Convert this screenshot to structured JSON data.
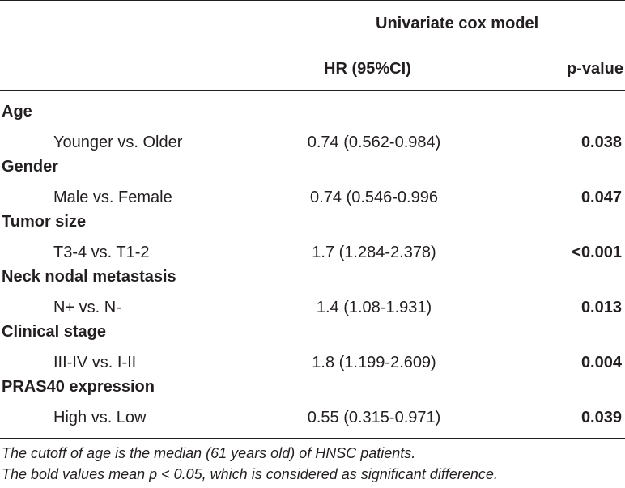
{
  "table": {
    "group_header": "Univariate cox model",
    "col_hr": "HR (95%CI)",
    "col_p": "p-value",
    "rows": [
      {
        "category": "Age",
        "comparison": "Younger vs. Older",
        "hr": "0.74 (0.562-0.984)",
        "p": "0.038"
      },
      {
        "category": "Gender",
        "comparison": "Male vs. Female",
        "hr": "0.74 (0.546-0.996",
        "p": "0.047"
      },
      {
        "category": "Tumor size",
        "comparison": "T3-4 vs. T1-2",
        "hr": "1.7 (1.284-2.378)",
        "p": "<0.001"
      },
      {
        "category": "Neck nodal metastasis",
        "comparison": "N+ vs. N-",
        "hr": "1.4 (1.08-1.931)",
        "p": "0.013"
      },
      {
        "category": "Clinical stage",
        "comparison": "III-IV vs. I-II",
        "hr": "1.8 (1.199-2.609)",
        "p": "0.004"
      },
      {
        "category": "PRAS40 expression",
        "comparison": "High vs. Low",
        "hr": "0.55 (0.315-0.971)",
        "p": "0.039"
      }
    ]
  },
  "footnotes": {
    "line1": "The cutoff of age is the median (61 years old) of HNSC patients.",
    "line2": "The bold values mean p < 0.05, which is considered as significant difference."
  }
}
